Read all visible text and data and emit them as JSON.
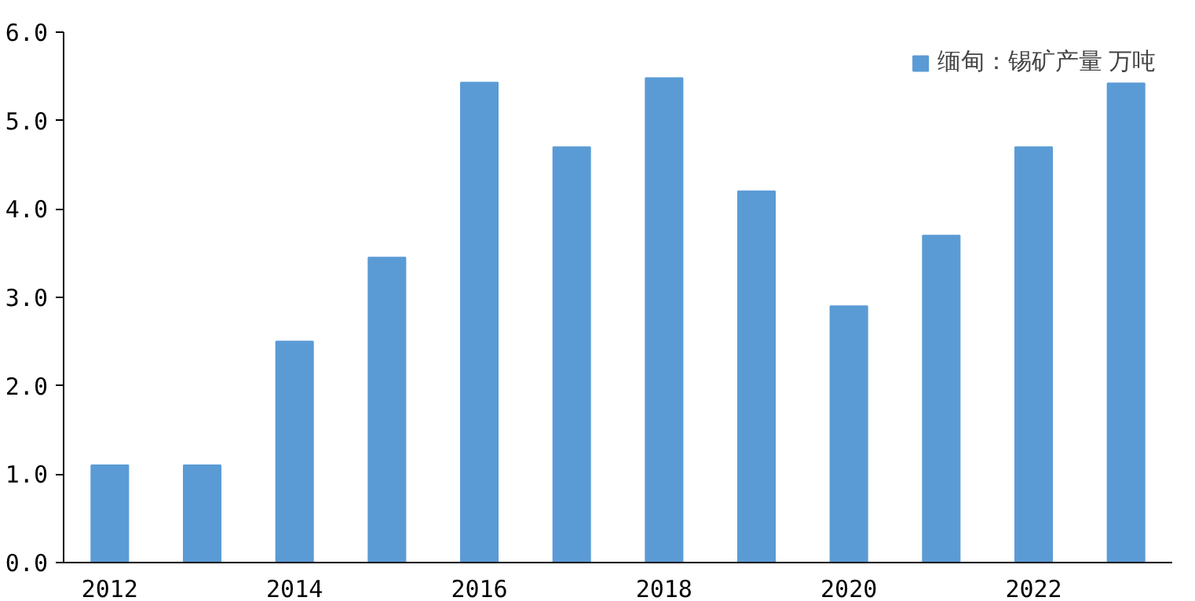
{
  "chart_data": {
    "type": "bar",
    "categories": [
      "2012",
      null,
      "2014",
      null,
      "2016",
      null,
      "2018",
      null,
      "2020",
      null,
      "2022",
      null
    ],
    "series": [
      {
        "name": "缅甸：锡矿产量 万吨",
        "color": "#5b9bd5",
        "values": [
          1.1,
          1.1,
          2.5,
          3.45,
          5.43,
          4.7,
          5.48,
          4.2,
          2.9,
          3.7,
          4.7,
          5.42
        ]
      }
    ],
    "ylim": [
      0,
      6
    ],
    "yticks": [
      {
        "value": 0,
        "label": "0.0"
      },
      {
        "value": 1,
        "label": "1.0"
      },
      {
        "value": 2,
        "label": "2.0"
      },
      {
        "value": 3,
        "label": "3.0"
      },
      {
        "value": 4,
        "label": "4.0"
      },
      {
        "value": 5,
        "label": "5.0"
      },
      {
        "value": 6,
        "label": "6.0"
      }
    ],
    "grid": false,
    "legend": "top right"
  }
}
